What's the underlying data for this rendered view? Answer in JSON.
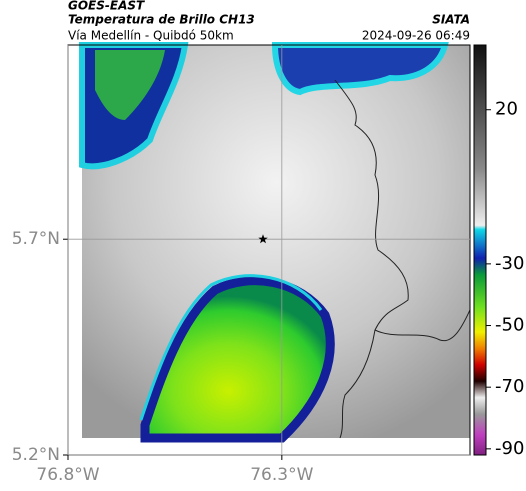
{
  "header": {
    "satellite": "GOES-EAST",
    "product": "Temperatura de Brillo CH13",
    "source": "SIATA",
    "route": "Vía Medellín - Quibdó 50km",
    "timestamp": "2024-09-26 06:49"
  },
  "map": {
    "xlim": [
      -76.8,
      -75.86
    ],
    "ylim": [
      5.2,
      6.15
    ],
    "xticks": [
      {
        "value": -76.8,
        "label": "76.8°W"
      },
      {
        "value": -76.3,
        "label": "76.3°W"
      }
    ],
    "yticks": [
      {
        "value": 5.2,
        "label": "5.2°N"
      },
      {
        "value": 5.7,
        "label": "5.7°N"
      }
    ],
    "marker": {
      "x": -76.344,
      "y": 5.7
    }
  },
  "colorbar": {
    "lim": [
      -92,
      41
    ],
    "ticks": [
      20,
      -30,
      -50,
      -70,
      -90
    ]
  }
}
